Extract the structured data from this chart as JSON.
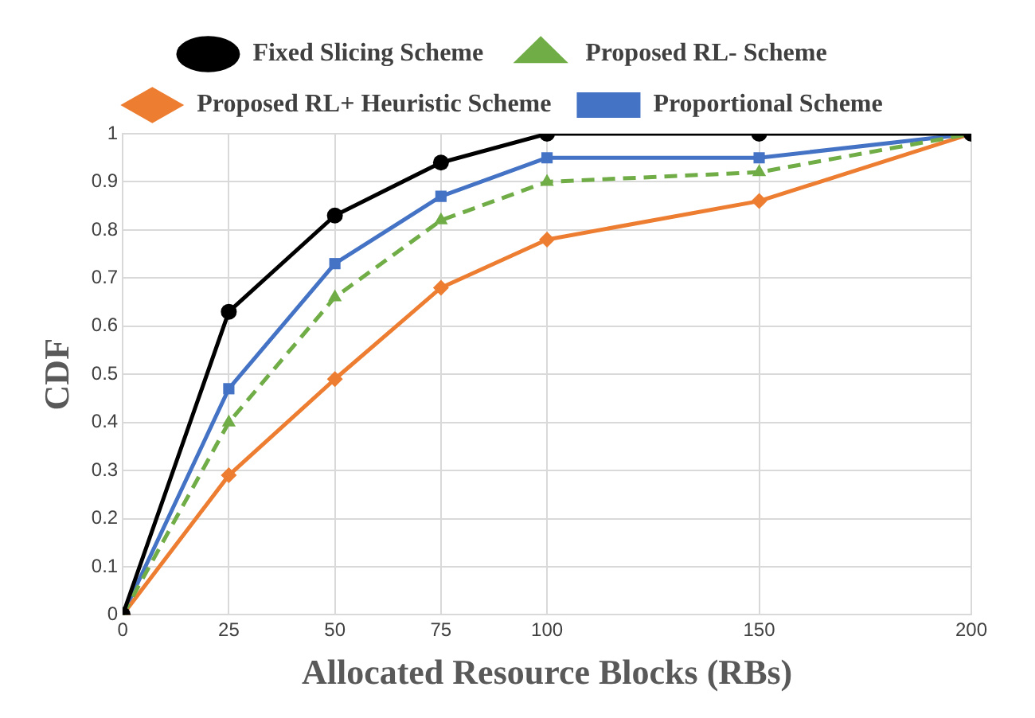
{
  "chart_data": {
    "type": "line",
    "xlabel": "Allocated Resource Blocks (RBs)",
    "ylabel": "CDF",
    "x": [
      0,
      25,
      50,
      75,
      100,
      150,
      200
    ],
    "series": [
      {
        "name": "Fixed Slicing Scheme",
        "color": "#000000",
        "marker": "circle",
        "line_style": "solid",
        "values": [
          0,
          0.63,
          0.83,
          0.94,
          1,
          1,
          1
        ]
      },
      {
        "name": "Proposed RL- Scheme",
        "color": "#70ad47",
        "marker": "triangle",
        "line_style": "dashed",
        "values": [
          0,
          0.4,
          0.66,
          0.82,
          0.9,
          0.92,
          1
        ]
      },
      {
        "name": "Proposed RL+ Heuristic Scheme",
        "color": "#ed7d31",
        "marker": "diamond",
        "line_style": "solid",
        "values": [
          0,
          0.29,
          0.49,
          0.68,
          0.78,
          0.86,
          1
        ]
      },
      {
        "name": "Proportional Scheme",
        "color": "#4472c4",
        "marker": "square",
        "line_style": "solid",
        "values": [
          0,
          0.47,
          0.73,
          0.87,
          0.95,
          0.95,
          1
        ]
      }
    ],
    "xlim": [
      0,
      200
    ],
    "xticks": [
      0,
      25,
      50,
      75,
      100,
      150,
      200
    ],
    "ylim": [
      0,
      1
    ],
    "yticks": [
      0,
      0.1,
      0.2,
      0.3,
      0.4,
      0.5,
      0.6,
      0.7,
      0.8,
      0.9,
      1
    ],
    "grid": true,
    "legend": "top"
  }
}
